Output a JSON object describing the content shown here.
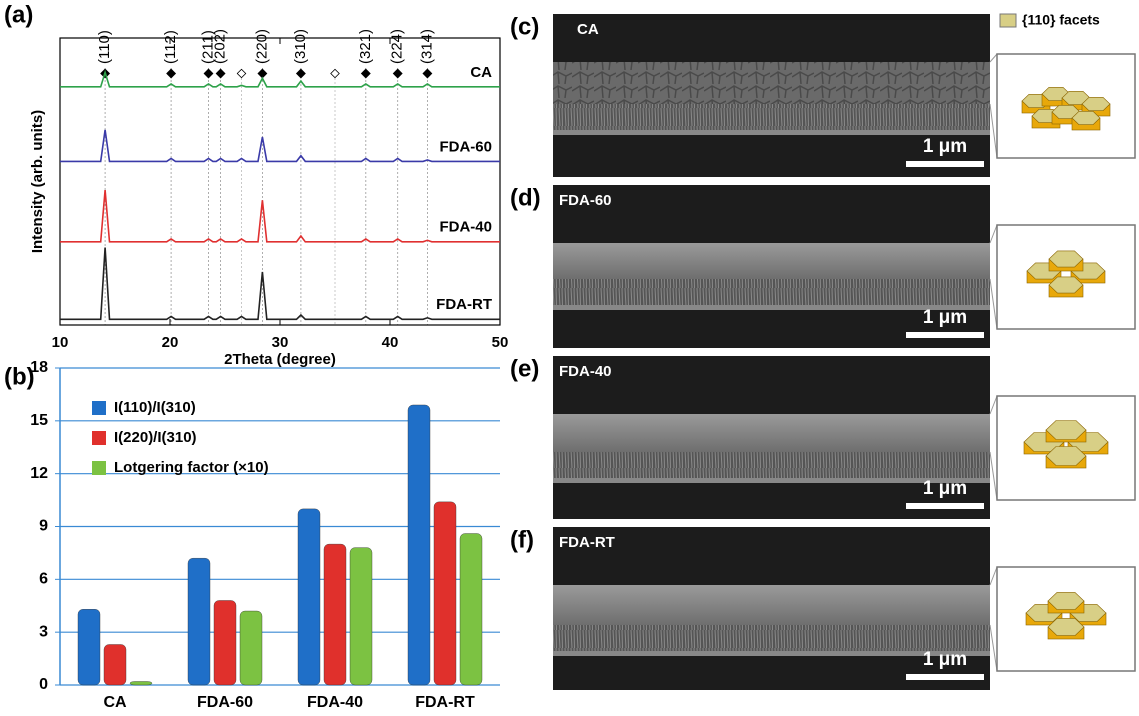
{
  "chart_data": [
    {
      "type": "line",
      "panel_label": "(a)",
      "x_label": "2Theta (degree)",
      "y_label": "Intensity (arb. units)",
      "xlim": [
        10,
        50
      ],
      "xticks": [
        10,
        20,
        30,
        40,
        50
      ],
      "ylim": [
        0,
        100
      ],
      "x": [
        10,
        13.7,
        14.1,
        14.5,
        19.7,
        20.1,
        20.5,
        23.1,
        23.5,
        23.9,
        24.2,
        24.6,
        25.0,
        26.1,
        26.5,
        26.9,
        28.0,
        28.4,
        28.8,
        31.5,
        31.9,
        32.3,
        34.6,
        35.0,
        35.4,
        37.4,
        37.8,
        38.2,
        40.3,
        40.7,
        41.1,
        43.0,
        43.4,
        43.8,
        50
      ],
      "series": [
        {
          "name": "CA",
          "color": "#2ea24a",
          "values": [
            83,
            83,
            88,
            83,
            83,
            84,
            83,
            83,
            84,
            83,
            83,
            84,
            83,
            83,
            83.5,
            83,
            83,
            86,
            83,
            83,
            85,
            83,
            83,
            83,
            83,
            83,
            84,
            83,
            83,
            84,
            83,
            83,
            84,
            83,
            83
          ]
        },
        {
          "name": "FDA-60",
          "color": "#3a3aa8",
          "values": [
            57,
            57,
            68,
            57,
            57,
            58,
            57,
            57,
            58,
            57,
            57,
            58,
            57,
            57,
            58,
            57,
            57,
            65.5,
            57,
            57,
            59,
            57,
            57,
            57,
            57,
            57,
            58,
            57,
            57,
            58,
            57,
            57,
            57.5,
            57,
            57
          ]
        },
        {
          "name": "FDA-40",
          "color": "#e03030",
          "values": [
            29,
            29,
            47,
            29,
            29,
            30,
            29,
            29,
            30,
            29,
            29,
            30,
            29,
            29,
            30,
            29,
            29,
            43.5,
            29,
            29,
            31,
            29,
            29,
            29,
            29,
            29,
            30,
            29,
            29,
            30,
            29,
            29,
            29.5,
            29,
            29
          ]
        },
        {
          "name": "FDA-RT",
          "color": "#222222",
          "values": [
            2,
            2,
            27,
            2,
            2,
            3,
            2,
            2,
            3,
            2,
            2,
            3,
            2,
            2,
            3,
            2,
            2,
            18.5,
            2,
            2,
            3.5,
            2,
            2,
            2,
            2,
            2,
            3,
            2,
            2,
            3,
            2,
            2,
            2.5,
            2,
            2
          ]
        }
      ],
      "reflections": [
        {
          "x": 14.1,
          "label": "(110)"
        },
        {
          "x": 20.1,
          "label": "(112)"
        },
        {
          "x": 23.5,
          "label": "(211)"
        },
        {
          "x": 24.6,
          "label": "(202)"
        },
        {
          "x": 28.4,
          "label": "(220)"
        },
        {
          "x": 31.9,
          "label": "(310)"
        },
        {
          "x": 37.8,
          "label": "(321)"
        },
        {
          "x": 40.7,
          "label": "(224)"
        },
        {
          "x": 43.4,
          "label": "(314)"
        }
      ],
      "impurity_peaks": [
        26.5,
        35.0
      ]
    },
    {
      "type": "bar",
      "panel_label": "(b)",
      "categories": [
        "CA",
        "FDA-60",
        "FDA-40",
        "FDA-RT"
      ],
      "ylim": [
        0,
        18
      ],
      "yticks": [
        0,
        3,
        6,
        9,
        12,
        15,
        18
      ],
      "grid": true,
      "series": [
        {
          "name": "I(110)/I(310)",
          "color": "#1f6fc8",
          "values": [
            4.3,
            7.2,
            10.0,
            15.9
          ]
        },
        {
          "name": "I(220)/I(310)",
          "color": "#e0302c",
          "values": [
            2.3,
            4.8,
            8.0,
            10.4
          ]
        },
        {
          "name": "Lotgering factor (×10)",
          "color": "#7cc242",
          "values": [
            0.2,
            4.2,
            7.8,
            8.6
          ]
        }
      ]
    }
  ],
  "facet_legend": "{110} facets",
  "sem_panels": [
    {
      "label": "(c)",
      "sample": "CA",
      "scale": "1 μm"
    },
    {
      "label": "(d)",
      "sample": "FDA-60",
      "scale": "1 μm"
    },
    {
      "label": "(e)",
      "sample": "FDA-40",
      "scale": "1 μm"
    },
    {
      "label": "(f)",
      "sample": "FDA-RT",
      "scale": "1 μm"
    }
  ]
}
